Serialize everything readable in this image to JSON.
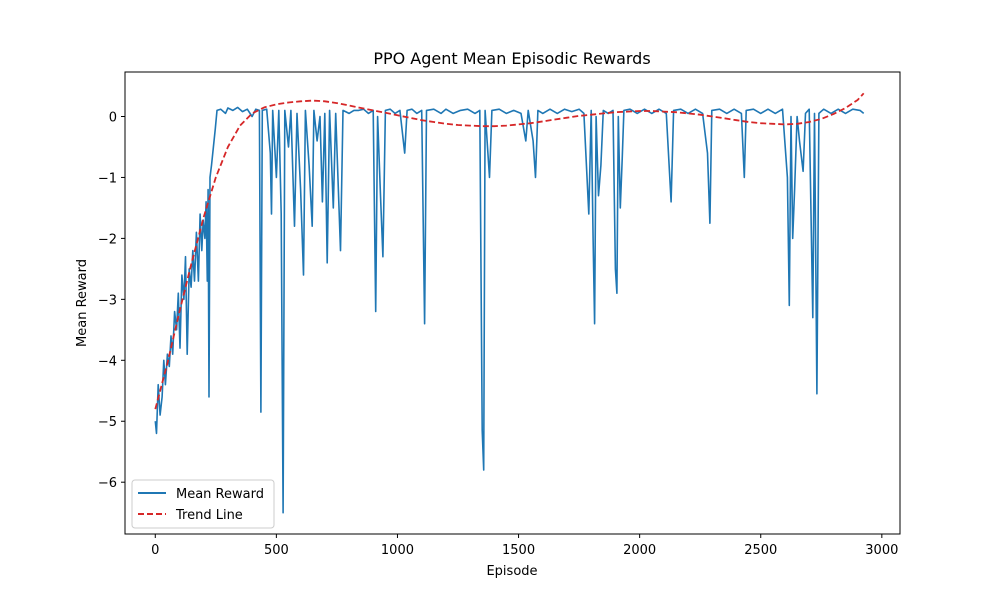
{
  "chart_data": {
    "type": "line",
    "title": "PPO Agent Mean Episodic Rewards",
    "xlabel": "Episode",
    "ylabel": "Mean Reward",
    "xlim": [
      -125,
      3075
    ],
    "ylim": [
      -6.85,
      0.73
    ],
    "x_ticks": [
      0,
      500,
      1000,
      1500,
      2000,
      2500,
      3000
    ],
    "x_tick_labels": [
      "0",
      "500",
      "1000",
      "1500",
      "2000",
      "2500",
      "3000"
    ],
    "y_ticks": [
      0,
      -1,
      -2,
      -3,
      -4,
      -5,
      -6
    ],
    "y_tick_labels": [
      "0",
      "−1",
      "−2",
      "−3",
      "−4",
      "−5",
      "−6"
    ],
    "grid": false,
    "legend_position": "lower-left",
    "series": [
      {
        "name": "Mean Reward",
        "color": "#1f77b4",
        "style": "solid",
        "points": [
          [
            0,
            -5.0
          ],
          [
            5,
            -5.2
          ],
          [
            12,
            -4.4
          ],
          [
            20,
            -4.9
          ],
          [
            28,
            -4.6
          ],
          [
            35,
            -4.0
          ],
          [
            42,
            -4.4
          ],
          [
            50,
            -3.9
          ],
          [
            58,
            -4.1
          ],
          [
            65,
            -3.6
          ],
          [
            72,
            -3.9
          ],
          [
            80,
            -3.2
          ],
          [
            88,
            -3.5
          ],
          [
            95,
            -2.9
          ],
          [
            102,
            -3.8
          ],
          [
            110,
            -2.6
          ],
          [
            118,
            -3.0
          ],
          [
            125,
            -2.3
          ],
          [
            132,
            -3.9
          ],
          [
            140,
            -2.5
          ],
          [
            148,
            -2.8
          ],
          [
            155,
            -2.2
          ],
          [
            162,
            -2.7
          ],
          [
            170,
            -1.9
          ],
          [
            178,
            -2.7
          ],
          [
            185,
            -1.6
          ],
          [
            192,
            -2.2
          ],
          [
            198,
            -1.7
          ],
          [
            205,
            -2.0
          ],
          [
            210,
            -1.4
          ],
          [
            215,
            -2.7
          ],
          [
            218,
            -1.2
          ],
          [
            222,
            -4.6
          ],
          [
            226,
            -1.0
          ],
          [
            232,
            -0.8
          ],
          [
            240,
            -0.5
          ],
          [
            248,
            -0.2
          ],
          [
            255,
            0.1
          ],
          [
            270,
            0.12
          ],
          [
            290,
            0.05
          ],
          [
            300,
            0.14
          ],
          [
            320,
            0.1
          ],
          [
            340,
            0.15
          ],
          [
            360,
            0.08
          ],
          [
            380,
            0.12
          ],
          [
            400,
            0.0
          ],
          [
            415,
            0.12
          ],
          [
            430,
            0.1
          ],
          [
            436,
            -4.85
          ],
          [
            442,
            0.1
          ],
          [
            460,
            0.12
          ],
          [
            475,
            -0.6
          ],
          [
            480,
            -1.6
          ],
          [
            485,
            0.1
          ],
          [
            500,
            -1.0
          ],
          [
            510,
            0.1
          ],
          [
            520,
            -1.6
          ],
          [
            528,
            -6.5
          ],
          [
            535,
            0.1
          ],
          [
            550,
            -0.5
          ],
          [
            560,
            0.1
          ],
          [
            575,
            -1.8
          ],
          [
            585,
            0.05
          ],
          [
            600,
            -1.2
          ],
          [
            612,
            -2.6
          ],
          [
            620,
            0.1
          ],
          [
            635,
            -0.8
          ],
          [
            648,
            -1.8
          ],
          [
            655,
            0.1
          ],
          [
            668,
            -0.4
          ],
          [
            680,
            0.0
          ],
          [
            690,
            -1.4
          ],
          [
            700,
            0.05
          ],
          [
            710,
            -2.4
          ],
          [
            720,
            0.1
          ],
          [
            735,
            -1.5
          ],
          [
            745,
            0.05
          ],
          [
            765,
            -2.2
          ],
          [
            775,
            0.1
          ],
          [
            800,
            0.05
          ],
          [
            820,
            0.1
          ],
          [
            840,
            0.1
          ],
          [
            860,
            0.12
          ],
          [
            880,
            0.05
          ],
          [
            900,
            0.1
          ],
          [
            910,
            -3.2
          ],
          [
            918,
            0.0
          ],
          [
            930,
            -1.3
          ],
          [
            940,
            -2.3
          ],
          [
            950,
            0.1
          ],
          [
            970,
            0.12
          ],
          [
            990,
            0.05
          ],
          [
            1010,
            0.1
          ],
          [
            1030,
            -0.6
          ],
          [
            1040,
            0.1
          ],
          [
            1060,
            0.12
          ],
          [
            1080,
            0.05
          ],
          [
            1100,
            0.1
          ],
          [
            1112,
            -3.4
          ],
          [
            1120,
            0.1
          ],
          [
            1150,
            0.12
          ],
          [
            1180,
            0.05
          ],
          [
            1200,
            0.12
          ],
          [
            1230,
            0.05
          ],
          [
            1260,
            0.1
          ],
          [
            1290,
            0.12
          ],
          [
            1320,
            0.05
          ],
          [
            1340,
            0.1
          ],
          [
            1350,
            -5.15
          ],
          [
            1356,
            -5.8
          ],
          [
            1362,
            0.1
          ],
          [
            1380,
            -1.0
          ],
          [
            1390,
            0.1
          ],
          [
            1420,
            0.12
          ],
          [
            1450,
            0.05
          ],
          [
            1480,
            0.1
          ],
          [
            1510,
            0.05
          ],
          [
            1530,
            -0.4
          ],
          [
            1540,
            0.1
          ],
          [
            1560,
            -0.4
          ],
          [
            1570,
            -1.0
          ],
          [
            1580,
            0.1
          ],
          [
            1600,
            0.05
          ],
          [
            1630,
            0.12
          ],
          [
            1660,
            0.05
          ],
          [
            1690,
            0.12
          ],
          [
            1720,
            0.08
          ],
          [
            1750,
            0.12
          ],
          [
            1770,
            0.05
          ],
          [
            1790,
            -1.6
          ],
          [
            1800,
            0.1
          ],
          [
            1808,
            -2.0
          ],
          [
            1814,
            -3.4
          ],
          [
            1820,
            0.0
          ],
          [
            1830,
            -1.3
          ],
          [
            1840,
            -0.8
          ],
          [
            1850,
            0.1
          ],
          [
            1870,
            0.05
          ],
          [
            1890,
            0.1
          ],
          [
            1900,
            -2.5
          ],
          [
            1906,
            -2.9
          ],
          [
            1912,
            0.0
          ],
          [
            1920,
            -1.5
          ],
          [
            1928,
            -0.7
          ],
          [
            1935,
            0.1
          ],
          [
            1960,
            0.12
          ],
          [
            1990,
            0.05
          ],
          [
            2020,
            0.12
          ],
          [
            2050,
            0.05
          ],
          [
            2080,
            0.12
          ],
          [
            2110,
            0.05
          ],
          [
            2130,
            -1.4
          ],
          [
            2140,
            0.1
          ],
          [
            2170,
            0.12
          ],
          [
            2200,
            0.05
          ],
          [
            2230,
            0.12
          ],
          [
            2260,
            0.05
          ],
          [
            2280,
            -0.6
          ],
          [
            2290,
            -1.75
          ],
          [
            2298,
            0.1
          ],
          [
            2330,
            0.12
          ],
          [
            2360,
            0.05
          ],
          [
            2390,
            0.12
          ],
          [
            2420,
            0.05
          ],
          [
            2432,
            -1.0
          ],
          [
            2440,
            0.1
          ],
          [
            2470,
            0.12
          ],
          [
            2500,
            0.05
          ],
          [
            2530,
            0.12
          ],
          [
            2560,
            0.05
          ],
          [
            2590,
            0.12
          ],
          [
            2610,
            -1.0
          ],
          [
            2618,
            -3.1
          ],
          [
            2625,
            0.0
          ],
          [
            2632,
            -2.0
          ],
          [
            2640,
            -1.2
          ],
          [
            2650,
            0.0
          ],
          [
            2660,
            -0.4
          ],
          [
            2675,
            -0.9
          ],
          [
            2685,
            0.05
          ],
          [
            2700,
            0.12
          ],
          [
            2715,
            -3.3
          ],
          [
            2722,
            0.05
          ],
          [
            2732,
            -4.55
          ],
          [
            2740,
            0.05
          ],
          [
            2760,
            0.12
          ],
          [
            2790,
            0.05
          ],
          [
            2820,
            0.12
          ],
          [
            2850,
            0.05
          ],
          [
            2880,
            0.12
          ],
          [
            2910,
            0.1
          ],
          [
            2925,
            0.05
          ]
        ]
      },
      {
        "name": "Trend Line",
        "color": "#d62728",
        "style": "dashed",
        "points": [
          [
            0,
            -4.8
          ],
          [
            50,
            -4.05
          ],
          [
            100,
            -3.2
          ],
          [
            150,
            -2.4
          ],
          [
            200,
            -1.65
          ],
          [
            250,
            -1.0
          ],
          [
            300,
            -0.5
          ],
          [
            350,
            -0.15
          ],
          [
            400,
            0.05
          ],
          [
            450,
            0.15
          ],
          [
            500,
            0.2
          ],
          [
            550,
            0.23
          ],
          [
            600,
            0.25
          ],
          [
            650,
            0.26
          ],
          [
            700,
            0.25
          ],
          [
            750,
            0.22
          ],
          [
            800,
            0.18
          ],
          [
            850,
            0.14
          ],
          [
            900,
            0.1
          ],
          [
            950,
            0.06
          ],
          [
            1000,
            0.02
          ],
          [
            1050,
            -0.02
          ],
          [
            1100,
            -0.06
          ],
          [
            1150,
            -0.09
          ],
          [
            1200,
            -0.12
          ],
          [
            1250,
            -0.14
          ],
          [
            1300,
            -0.15
          ],
          [
            1350,
            -0.16
          ],
          [
            1400,
            -0.16
          ],
          [
            1450,
            -0.15
          ],
          [
            1500,
            -0.13
          ],
          [
            1550,
            -0.11
          ],
          [
            1600,
            -0.08
          ],
          [
            1650,
            -0.05
          ],
          [
            1700,
            -0.02
          ],
          [
            1750,
            0.01
          ],
          [
            1800,
            0.03
          ],
          [
            1850,
            0.05
          ],
          [
            1900,
            0.07
          ],
          [
            1950,
            0.08
          ],
          [
            2000,
            0.09
          ],
          [
            2050,
            0.09
          ],
          [
            2100,
            0.08
          ],
          [
            2150,
            0.07
          ],
          [
            2200,
            0.05
          ],
          [
            2250,
            0.03
          ],
          [
            2300,
            0.0
          ],
          [
            2350,
            -0.03
          ],
          [
            2400,
            -0.06
          ],
          [
            2450,
            -0.09
          ],
          [
            2500,
            -0.11
          ],
          [
            2550,
            -0.12
          ],
          [
            2600,
            -0.13
          ],
          [
            2650,
            -0.12
          ],
          [
            2700,
            -0.09
          ],
          [
            2750,
            -0.04
          ],
          [
            2800,
            0.04
          ],
          [
            2850,
            0.14
          ],
          [
            2900,
            0.27
          ],
          [
            2925,
            0.38
          ]
        ]
      }
    ]
  }
}
